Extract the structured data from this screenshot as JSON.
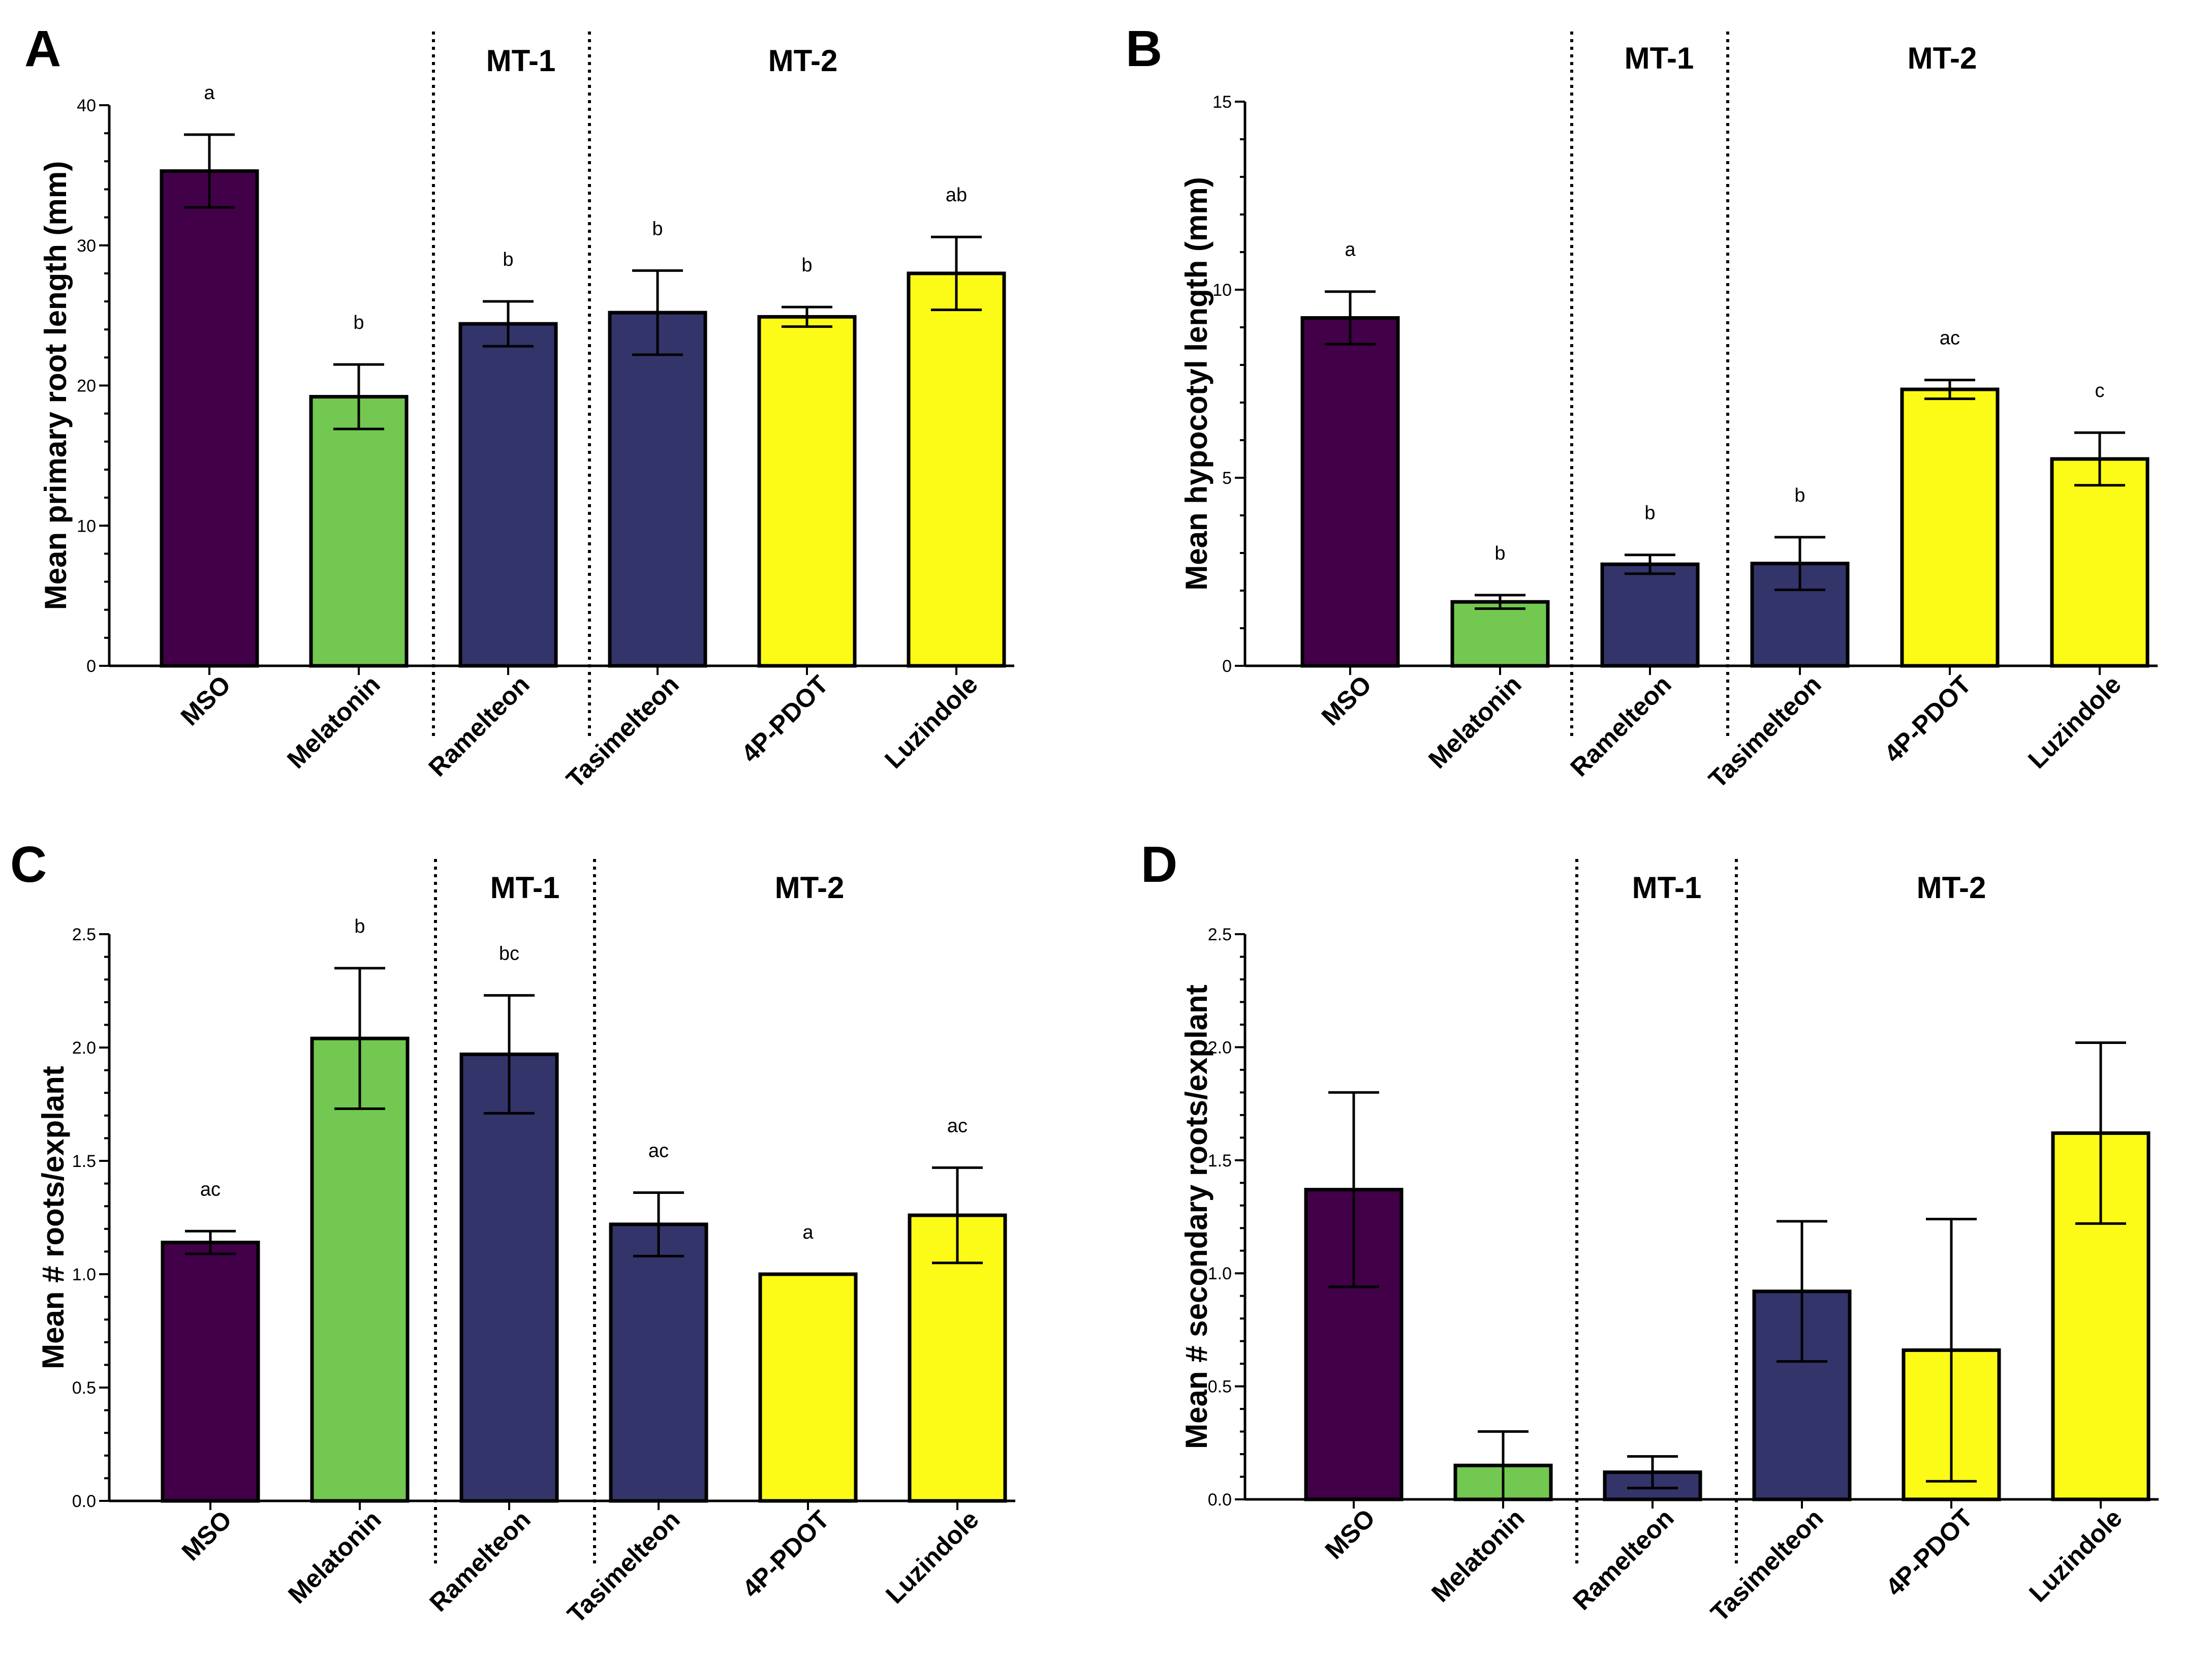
{
  "chart_data": [
    {
      "type": "bar",
      "panel": "A",
      "ylabel": "Mean primary root length (mm)",
      "ylim": [
        0,
        40
      ],
      "yticks": [
        0,
        10,
        20,
        30,
        40
      ],
      "ytick_labels": [
        "0",
        "10",
        "20",
        "30",
        "40"
      ],
      "minor_tick_step": 2,
      "categories": [
        "MSO",
        "Melatonin",
        "Ramelteon",
        "Tasimelteon",
        "4P-PDOT",
        "Luzindole"
      ],
      "values": [
        35.3,
        19.2,
        24.4,
        25.2,
        24.9,
        28.0
      ],
      "errors": [
        2.6,
        2.3,
        1.6,
        3.0,
        0.7,
        2.6
      ],
      "significance": [
        "a",
        "b",
        "b",
        "b",
        "b",
        "ab"
      ],
      "groups": [
        {
          "label": "MT-1"
        },
        {
          "label": "MT-2"
        }
      ]
    },
    {
      "type": "bar",
      "panel": "B",
      "ylabel": "Mean hypocotyl length (mm)",
      "ylim": [
        0,
        15
      ],
      "yticks": [
        0,
        5,
        10,
        15
      ],
      "ytick_labels": [
        "0",
        "5",
        "10",
        "15"
      ],
      "minor_tick_step": 1,
      "categories": [
        "MSO",
        "Melatonin",
        "Ramelteon",
        "Tasimelteon",
        "4P-PDOT",
        "Luzindole"
      ],
      "values": [
        9.25,
        1.7,
        2.7,
        2.72,
        7.35,
        5.5
      ],
      "errors": [
        0.7,
        0.18,
        0.25,
        0.7,
        0.25,
        0.7
      ],
      "significance": [
        "a",
        "b",
        "b",
        "b",
        "ac",
        "c"
      ],
      "groups": [
        {
          "label": "MT-1"
        },
        {
          "label": "MT-2"
        }
      ]
    },
    {
      "type": "bar",
      "panel": "C",
      "ylabel": "Mean # roots/explant",
      "ylim": [
        0,
        2.5
      ],
      "yticks": [
        0,
        0.5,
        1.0,
        1.5,
        2.0,
        2.5
      ],
      "ytick_labels": [
        "0.0",
        "0.5",
        "1.0",
        "1.5",
        "2.0",
        "2.5"
      ],
      "minor_tick_step": 0.1,
      "categories": [
        "MSO",
        "Melatonin",
        "Ramelteon",
        "Tasimelteon",
        "4P-PDOT",
        "Luzindole"
      ],
      "values": [
        1.14,
        2.04,
        1.97,
        1.22,
        1.0,
        1.26
      ],
      "errors": [
        0.05,
        0.31,
        0.26,
        0.14,
        0.0,
        0.21
      ],
      "significance": [
        "ac",
        "b",
        "bc",
        "ac",
        "a",
        "ac"
      ],
      "groups": [
        {
          "label": "MT-1"
        },
        {
          "label": "MT-2"
        }
      ]
    },
    {
      "type": "bar",
      "panel": "D",
      "ylabel": "Mean # secondary roots/explant",
      "ylim": [
        0,
        2.5
      ],
      "yticks": [
        0,
        0.5,
        1.0,
        1.5,
        2.0,
        2.5
      ],
      "ytick_labels": [
        "0.0",
        "0.5",
        "1.0",
        "1.5",
        "2.0",
        "2.5"
      ],
      "minor_tick_step": 0.1,
      "categories": [
        "MSO",
        "Melatonin",
        "Ramelteon",
        "Tasimelteon",
        "4P-PDOT",
        "Luzindole"
      ],
      "values": [
        1.37,
        0.15,
        0.12,
        0.92,
        0.66,
        1.62
      ],
      "errors": [
        0.43,
        0.15,
        0.07,
        0.31,
        0.58,
        0.4
      ],
      "significance": [
        "",
        "",
        "",
        "",
        "",
        ""
      ],
      "groups": [
        {
          "label": "MT-1"
        },
        {
          "label": "MT-2"
        }
      ]
    }
  ],
  "colors": {
    "MSO": "#420049",
    "Melatonin": "#72C850",
    "Ramelteon": "#33346A",
    "Tasimelteon": "#33346A",
    "4P-PDOT": "#FCFA17",
    "Luzindole": "#FCFA17"
  }
}
